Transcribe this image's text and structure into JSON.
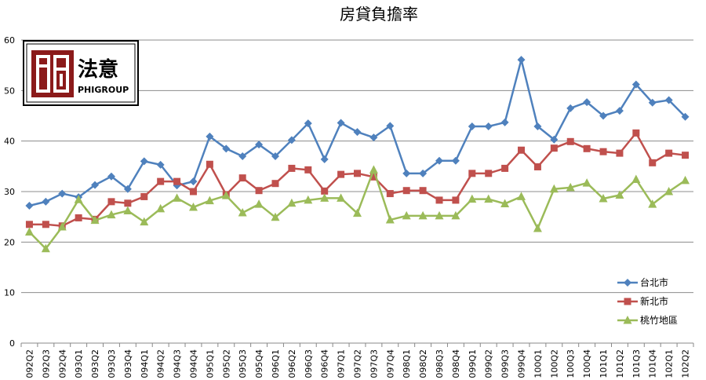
{
  "chart_data": {
    "type": "line",
    "title": "房貸負擔率",
    "xlabel": "",
    "ylabel": "",
    "ylim": [
      0,
      60
    ],
    "yticks": [
      0,
      10,
      20,
      30,
      40,
      50,
      60
    ],
    "grid": true,
    "legend_position": "bottom-right",
    "categories": [
      "092Q2",
      "092Q3",
      "092Q4",
      "093Q1",
      "093Q2",
      "093Q3",
      "093Q4",
      "094Q1",
      "094Q2",
      "094Q3",
      "094Q4",
      "095Q1",
      "095Q2",
      "095Q3",
      "095Q4",
      "096Q1",
      "096Q2",
      "096Q3",
      "096Q4",
      "097Q1",
      "097Q2",
      "097Q3",
      "097Q4",
      "098Q1",
      "098Q2",
      "098Q3",
      "098Q4",
      "099Q1",
      "099Q2",
      "099Q3",
      "099Q4",
      "100Q1",
      "100Q2",
      "100Q3",
      "100Q4",
      "101Q1",
      "101Q2",
      "101Q3",
      "101Q4",
      "102Q1",
      "102Q2"
    ],
    "series": [
      {
        "name": "台北市",
        "color": "#4F81BD",
        "marker": "diamond",
        "values": [
          27.2,
          28.0,
          29.6,
          28.9,
          31.3,
          33.0,
          30.5,
          36.0,
          35.3,
          31.2,
          32.0,
          40.9,
          38.5,
          37.0,
          39.3,
          37.0,
          40.2,
          43.5,
          36.4,
          43.6,
          41.8,
          40.7,
          43.0,
          33.6,
          33.6,
          36.1,
          36.1,
          42.9,
          42.9,
          43.7,
          56.1,
          42.9,
          40.3,
          46.5,
          47.7,
          45.0,
          46.0,
          51.2,
          47.6,
          48.1,
          44.8
        ]
      },
      {
        "name": "新北市",
        "color": "#C0504D",
        "marker": "square",
        "values": [
          23.5,
          23.5,
          23.2,
          24.8,
          24.5,
          28.0,
          27.7,
          29.0,
          32.0,
          32.0,
          30.0,
          35.4,
          29.4,
          32.7,
          30.2,
          31.6,
          34.6,
          34.3,
          30.1,
          33.4,
          33.6,
          32.9,
          29.6,
          30.2,
          30.2,
          28.3,
          28.3,
          33.6,
          33.6,
          34.6,
          38.2,
          34.9,
          38.6,
          39.9,
          38.5,
          37.9,
          37.6,
          41.6,
          35.7,
          37.6,
          37.2
        ]
      },
      {
        "name": "桃竹地區",
        "color": "#9BBB59",
        "marker": "triangle",
        "values": [
          22.0,
          18.7,
          23.0,
          28.4,
          24.3,
          25.4,
          26.2,
          24.0,
          26.6,
          28.7,
          26.9,
          28.2,
          29.2,
          25.8,
          27.5,
          24.9,
          27.7,
          28.3,
          28.7,
          28.7,
          25.7,
          34.3,
          24.4,
          25.2,
          25.2,
          25.2,
          25.2,
          28.5,
          28.5,
          27.6,
          29.0,
          22.7,
          30.5,
          30.8,
          31.7,
          28.6,
          29.3,
          32.4,
          27.5,
          30.0,
          32.2
        ]
      }
    ]
  },
  "logo": {
    "cn": "法意",
    "en": "PHIGROUP"
  }
}
